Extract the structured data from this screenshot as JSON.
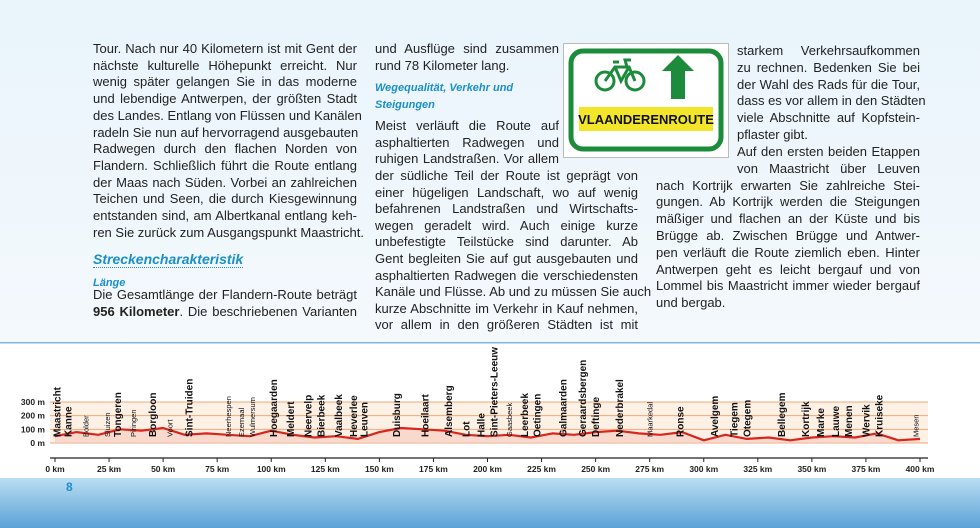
{
  "column1": {
    "paragraph": [
      "Tour. Nach nur 40 Kilometern ist mit Gent der",
      "nächste kulturelle Höhepunkt erreicht. Nur",
      "wenig später gelangen Sie in das moderne",
      "und lebendige Antwerpen, der größten Stadt",
      "des Landes. Entlang von Flüssen und Kanälen",
      "radeln Sie nun auf hervorragend ausgebauten",
      "Radwegen durch den flachen Norden von",
      "Flandern. Schließlich führt die Route entlang",
      "der Maas nach Süden. Vorbei an zahlreichen",
      "Teichen und Seen, die durch Kiesgewinnung",
      "entstanden sind, am Albertkanal entlang keh-",
      "ren Sie zurück zum Ausgangspunkt Maastricht."
    ],
    "heading": "Streckencharakteristik",
    "subheading": "Länge",
    "length_line1": "Die Gesamtlänge der Flandern-Route beträgt",
    "length_bold": "956 Kilometer",
    "length_line2_rest": ". Die beschriebenen Varianten"
  },
  "column2": {
    "intro": [
      "und Ausflüge sind zusammen",
      "rund 78 Kilometer lang."
    ],
    "heading": [
      "Wegequalität, Verkehr und",
      "Steigungen"
    ],
    "narrow": [
      "Meist verläuft die Route auf",
      "asphaltierten Radwegen und",
      "ruhigen Landstraßen. Vor allem"
    ],
    "wide": [
      "der südliche Teil der Route ist geprägt von",
      "einer hügeligen Landschaft, wo auf wenig",
      "befahrenen Landstraßen und Wirtschafts-",
      "wegen geradelt wird. Auch einige kurze",
      "unbefestigte Teilstücke sind darunter. Ab",
      "Gent begleiten Sie auf gut ausgebauten und",
      "asphaltierten Radwegen die verschiedensten",
      "Kanäle und Flüsse. Ab und zu müssen Sie auch",
      "kurze Abschnitte im Verkehr in Kauf nehmen,",
      "vor allem in den größeren Städten ist mit"
    ]
  },
  "column3": {
    "narrow": [
      "starkem Verkehrsaufkommen",
      "zu rechnen. Bedenken Sie bei",
      "der Wahl des Rads für die Tour,",
      "dass es vor allem in den Städten",
      "viele Abschnitte auf Kopfstein-",
      "pflaster gibt.",
      "Auf den ersten beiden Etappen",
      "von Maastricht über Leuven"
    ],
    "wide": [
      "nach Kortrijk erwarten Sie zahlreiche Stei-",
      "gungen. Ab Kortrijk werden die Steigungen",
      "mäßiger und flachen an der Küste und bis",
      "Brügge ab. Zwischen Brügge und Antwer-",
      "pen verläuft die Route ziemlich eben. Hinter",
      "Antwerpen geht es leicht bergauf und von",
      "Lommel bis Maastricht immer wieder bergauf",
      "und bergab."
    ]
  },
  "sign": {
    "label": "VLAANDERENROUTE"
  },
  "page_number": "8",
  "chart_data": {
    "type": "line",
    "color": "#d8261c",
    "x": [
      0,
      10,
      20,
      30,
      40,
      50,
      60,
      70,
      80,
      90,
      100,
      110,
      120,
      130,
      140,
      150,
      160,
      170,
      180,
      190,
      200,
      210,
      220,
      230,
      240,
      250,
      260,
      270,
      280,
      290,
      300,
      310,
      320,
      330,
      340,
      350,
      360,
      370,
      380,
      390,
      400
    ],
    "values": [
      50,
      80,
      60,
      100,
      90,
      110,
      60,
      70,
      60,
      50,
      90,
      60,
      40,
      50,
      30,
      80,
      110,
      100,
      90,
      60,
      50,
      60,
      40,
      70,
      60,
      80,
      90,
      70,
      60,
      80,
      20,
      60,
      30,
      40,
      20,
      40,
      50,
      40,
      70,
      20,
      30
    ],
    "xlim": [
      0,
      400
    ],
    "ylim": [
      0,
      300
    ],
    "xticks": [
      {
        "value": 0,
        "label": "0 km"
      },
      {
        "value": 25,
        "label": "25 km"
      },
      {
        "value": 50,
        "label": "50 km"
      },
      {
        "value": 75,
        "label": "75 km"
      },
      {
        "value": 100,
        "label": "100 km"
      },
      {
        "value": 125,
        "label": "125 km"
      },
      {
        "value": 150,
        "label": "150 km"
      },
      {
        "value": 175,
        "label": "175 km"
      },
      {
        "value": 200,
        "label": "200 km"
      },
      {
        "value": 225,
        "label": "225 km"
      },
      {
        "value": 250,
        "label": "250 km"
      },
      {
        "value": 275,
        "label": "275 km"
      },
      {
        "value": 300,
        "label": "300 km"
      },
      {
        "value": 325,
        "label": "325 km"
      },
      {
        "value": 350,
        "label": "350 km"
      },
      {
        "value": 375,
        "label": "375 km"
      },
      {
        "value": 400,
        "label": "400 km"
      }
    ],
    "yticks": [
      {
        "value": 300,
        "label": "300 m"
      },
      {
        "value": 200,
        "label": "200 m"
      },
      {
        "value": 100,
        "label": "100 m"
      },
      {
        "value": 0,
        "label": "0 m"
      }
    ],
    "grid": true,
    "places": [
      {
        "label": "Maastricht",
        "x": 1,
        "bold": true
      },
      {
        "label": "Kanne",
        "x": 6,
        "bold": true
      },
      {
        "label": "Bolder",
        "x": 14,
        "bold": false
      },
      {
        "label": "Sluizen",
        "x": 24,
        "bold": false
      },
      {
        "label": "Tongeren",
        "x": 29,
        "bold": true
      },
      {
        "label": "Piringen",
        "x": 36,
        "bold": false
      },
      {
        "label": "Borgloon",
        "x": 45,
        "bold": true
      },
      {
        "label": "Voort",
        "x": 53,
        "bold": false
      },
      {
        "label": "Sint-Truiden",
        "x": 62,
        "bold": true
      },
      {
        "label": "Neerhespen",
        "x": 80,
        "bold": false
      },
      {
        "label": "Ezemaal",
        "x": 86,
        "bold": false
      },
      {
        "label": "Wulmersum",
        "x": 91,
        "bold": false
      },
      {
        "label": "Hoegaarden",
        "x": 101,
        "bold": true
      },
      {
        "label": "Meldert",
        "x": 109,
        "bold": true
      },
      {
        "label": "Neervelp",
        "x": 117,
        "bold": true
      },
      {
        "label": "Bierbeek",
        "x": 123,
        "bold": true
      },
      {
        "label": "Vaalbeek",
        "x": 131,
        "bold": true
      },
      {
        "label": "Heverlee",
        "x": 138,
        "bold": true
      },
      {
        "label": "Leuven",
        "x": 143,
        "bold": true
      },
      {
        "label": "Duisburg",
        "x": 158,
        "bold": true
      },
      {
        "label": "Hoeilaart",
        "x": 171,
        "bold": true
      },
      {
        "label": "Alsemberg",
        "x": 182,
        "bold": true
      },
      {
        "label": "Lot",
        "x": 190,
        "bold": true
      },
      {
        "label": "Halle",
        "x": 197,
        "bold": true
      },
      {
        "label": "Sint-Pieters-Leeuw",
        "x": 203,
        "bold": true
      },
      {
        "label": "Gaasbeek",
        "x": 210,
        "bold": false
      },
      {
        "label": "Leerbeek",
        "x": 217,
        "bold": true
      },
      {
        "label": "Oetingen",
        "x": 223,
        "bold": true
      },
      {
        "label": "Galmaarden",
        "x": 235,
        "bold": true
      },
      {
        "label": "Geraardsbergen",
        "x": 244,
        "bold": true
      },
      {
        "label": "Deftinge",
        "x": 250,
        "bold": true
      },
      {
        "label": "Nederbrakel",
        "x": 261,
        "bold": true
      },
      {
        "label": "Maarkedal",
        "x": 275,
        "bold": false
      },
      {
        "label": "Ronse",
        "x": 289,
        "bold": true
      },
      {
        "label": "Avelgem",
        "x": 305,
        "bold": true
      },
      {
        "label": "Tiegem",
        "x": 314,
        "bold": true
      },
      {
        "label": "Otegem",
        "x": 320,
        "bold": true
      },
      {
        "label": "Bellegem",
        "x": 336,
        "bold": true
      },
      {
        "label": "Kortrijk",
        "x": 347,
        "bold": true
      },
      {
        "label": "Marke",
        "x": 354,
        "bold": true
      },
      {
        "label": "Lauwe",
        "x": 361,
        "bold": true
      },
      {
        "label": "Menen",
        "x": 367,
        "bold": true
      },
      {
        "label": "Wervik",
        "x": 375,
        "bold": true
      },
      {
        "label": "Kruiseke",
        "x": 381,
        "bold": true
      },
      {
        "label": "Mesen",
        "x": 398,
        "bold": false
      }
    ]
  }
}
